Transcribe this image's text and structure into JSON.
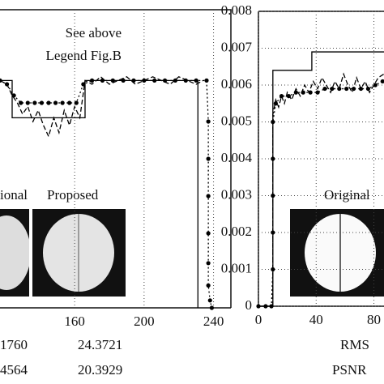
{
  "chart_data": [
    {
      "type": "line",
      "xlim": [
        117,
        250
      ],
      "ylim": [
        0,
        0.008
      ],
      "xticks": [
        160,
        200,
        240
      ],
      "grid": true,
      "annotations": [
        "See above",
        "Legend Fig.B",
        "ional",
        "Proposed"
      ],
      "series": [
        {
          "style": "solid",
          "color": "#000000",
          "x": [
            117,
            124,
            124,
            166,
            166,
            231,
            231
          ],
          "values": [
            0.0061,
            0.0061,
            0.0051,
            0.0051,
            0.0061,
            0.0061,
            0
          ]
        },
        {
          "style": "dashed",
          "color": "#000000",
          "x": [
            117,
            121,
            124,
            127,
            130,
            133,
            136,
            139,
            142,
            145,
            148,
            151,
            154,
            157,
            160,
            163,
            166,
            170,
            175,
            180,
            185,
            190,
            195,
            200,
            205,
            210,
            215,
            220,
            225,
            230,
            234
          ],
          "values": [
            0.0061,
            0.006,
            0.0057,
            0.0055,
            0.0052,
            0.0054,
            0.005,
            0.0053,
            0.0049,
            0.0046,
            0.0051,
            0.0047,
            0.0053,
            0.0049,
            0.0054,
            0.0051,
            0.0061,
            0.006,
            0.0062,
            0.006,
            0.0061,
            0.0062,
            0.006,
            0.0061,
            0.0062,
            0.0061,
            0.006,
            0.0062,
            0.0061,
            0.006,
            0.0061
          ]
        },
        {
          "style": "dotted-markers",
          "color": "#000000",
          "x": [
            117,
            121,
            125,
            129,
            133,
            137,
            141,
            145,
            149,
            153,
            157,
            161,
            165,
            170,
            176,
            182,
            188,
            194,
            200,
            206,
            212,
            218,
            224,
            230,
            236,
            237,
            237,
            237,
            237,
            237,
            237,
            238,
            239
          ],
          "values": [
            0.0061,
            0.006,
            0.0057,
            0.0055,
            0.0055,
            0.0055,
            0.0055,
            0.0055,
            0.0055,
            0.0055,
            0.0055,
            0.0055,
            0.006,
            0.0061,
            0.0061,
            0.0061,
            0.0061,
            0.0061,
            0.0061,
            0.0061,
            0.0061,
            0.0061,
            0.0061,
            0.0061,
            0.0061,
            0.005,
            0.004,
            0.003,
            0.002,
            0.0012,
            0.0006,
            0.0002,
            0
          ]
        }
      ]
    },
    {
      "type": "line",
      "xlim": [
        0,
        87
      ],
      "ylim": [
        0,
        0.008
      ],
      "xticks": [
        0,
        40,
        80
      ],
      "yticks": [
        0,
        0.001,
        0.002,
        0.003,
        0.004,
        0.005,
        0.006,
        0.007,
        0.008
      ],
      "grid": true,
      "annotations": [
        "Original"
      ],
      "series": [
        {
          "style": "solid",
          "color": "#000000",
          "x": [
            0,
            10,
            10,
            37,
            37,
            87
          ],
          "values": [
            0,
            0,
            0.0064,
            0.0064,
            0.0069,
            0.0069
          ]
        },
        {
          "style": "dashed",
          "color": "#000000",
          "x": [
            0,
            10,
            10,
            12,
            14,
            16,
            18,
            20,
            23,
            26,
            29,
            32,
            35,
            38,
            41,
            44,
            47,
            50,
            53,
            56,
            59,
            62,
            65,
            68,
            71,
            74,
            77,
            80,
            83,
            87
          ],
          "values": [
            0,
            0,
            0.0052,
            0.0056,
            0.0054,
            0.0057,
            0.0055,
            0.0058,
            0.0056,
            0.0059,
            0.0057,
            0.006,
            0.0058,
            0.0061,
            0.0059,
            0.0062,
            0.006,
            0.0058,
            0.0061,
            0.0059,
            0.0063,
            0.006,
            0.0058,
            0.0062,
            0.0059,
            0.0061,
            0.0058,
            0.006,
            0.0062,
            0.0063
          ]
        },
        {
          "style": "dotted-markers",
          "color": "#000000",
          "x": [
            0,
            5,
            9,
            10,
            10,
            10,
            10,
            10,
            12,
            16,
            21,
            26,
            31,
            36,
            41,
            46,
            51,
            56,
            61,
            66,
            71,
            76,
            81,
            86
          ],
          "values": [
            0,
            0,
            0,
            0.001,
            0.002,
            0.003,
            0.004,
            0.005,
            0.0055,
            0.0057,
            0.0057,
            0.0058,
            0.0058,
            0.0058,
            0.0058,
            0.0059,
            0.0059,
            0.0059,
            0.0059,
            0.0059,
            0.0059,
            0.0059,
            0.006,
            0.0061
          ]
        }
      ]
    }
  ],
  "table": {
    "rows": [
      [
        "1760",
        "24.3721"
      ],
      [
        "4564",
        "20.3929"
      ]
    ],
    "labels": [
      "RMS",
      "PSNR"
    ]
  }
}
